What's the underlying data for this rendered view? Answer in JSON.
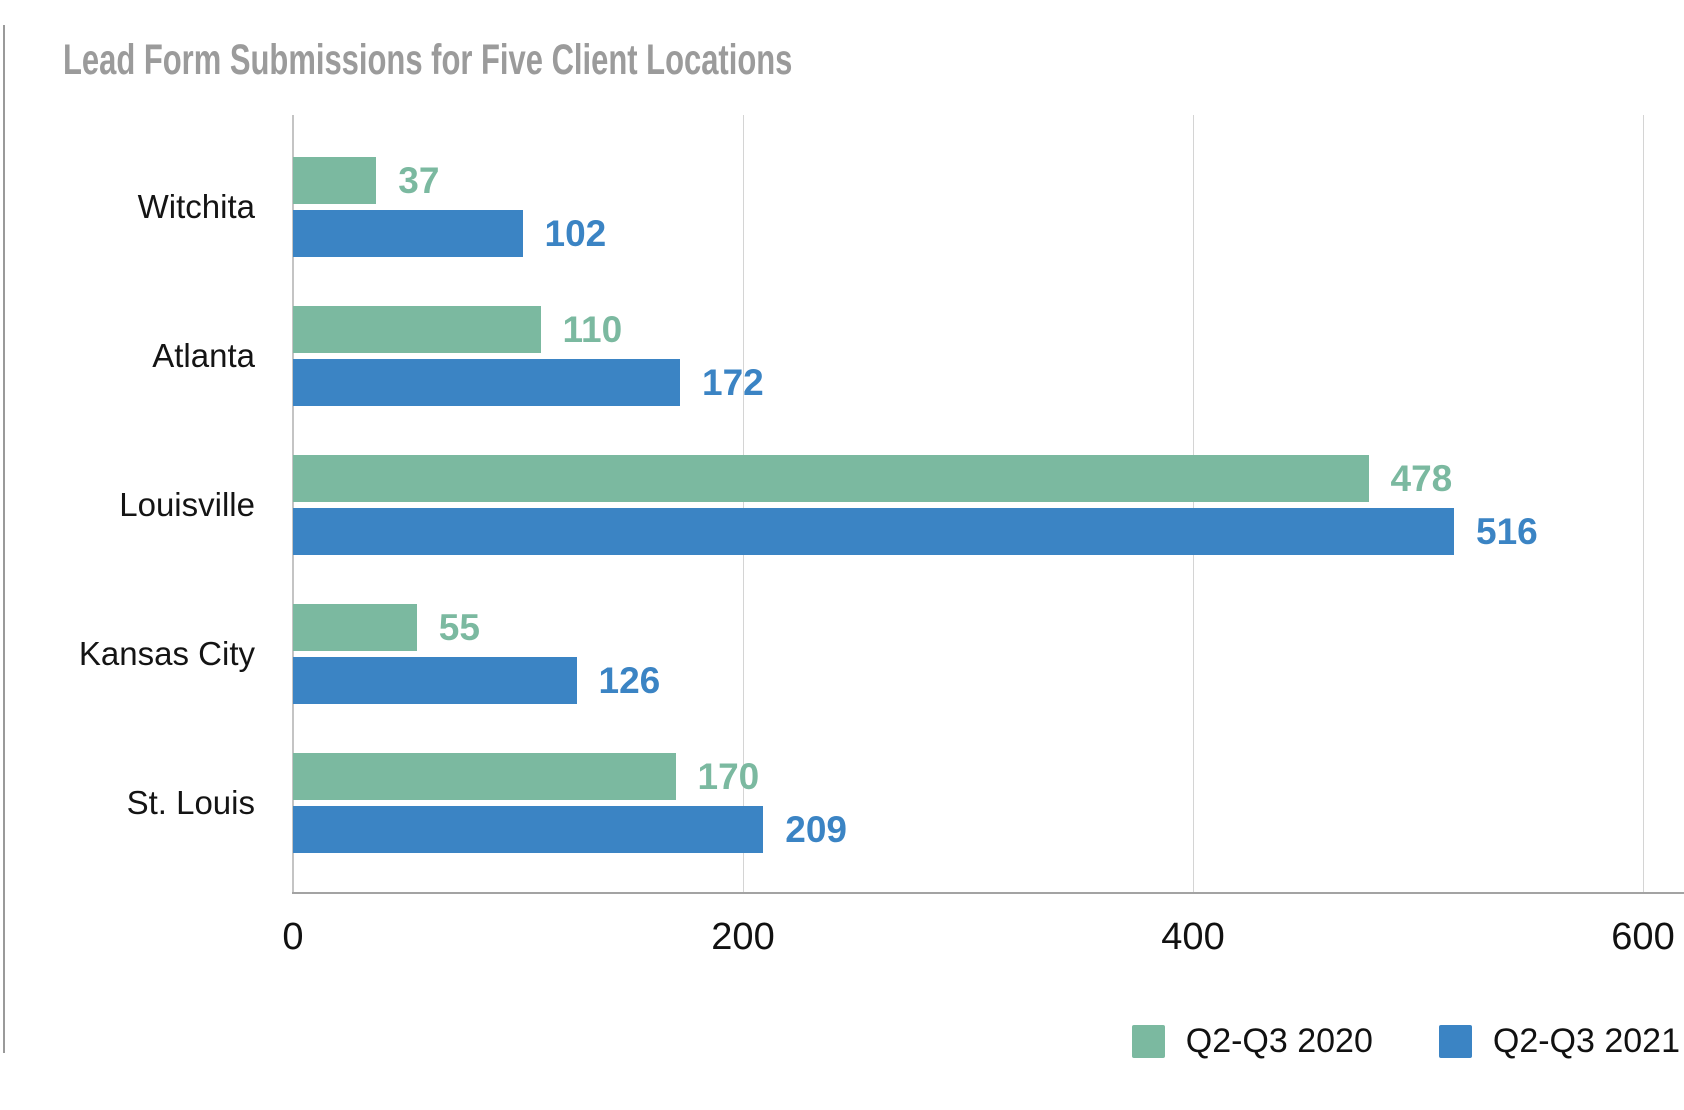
{
  "chart_data": {
    "type": "bar",
    "orientation": "horizontal",
    "title": "Lead Form Submissions for Five Client Locations",
    "title_color": "#9b9b9b",
    "categories": [
      "Witchita",
      "Atlanta",
      "Louisville",
      "Kansas City",
      "St. Louis"
    ],
    "series": [
      {
        "name": "Q2-Q3 2020",
        "color": "#7bb9a0",
        "values": [
          37,
          110,
          478,
          55,
          170
        ]
      },
      {
        "name": "Q2-Q3 2021",
        "color": "#3b84c4",
        "values": [
          102,
          172,
          516,
          126,
          209
        ]
      }
    ],
    "xlim": [
      0,
      600
    ],
    "x_ticks": [
      0,
      200,
      400,
      600
    ],
    "grid": true,
    "value_labels": true,
    "legend_position": "bottom-right",
    "background": "#ffffff",
    "gridline_color": "#d4d4d4",
    "axis_color": "#a3a3a3"
  }
}
